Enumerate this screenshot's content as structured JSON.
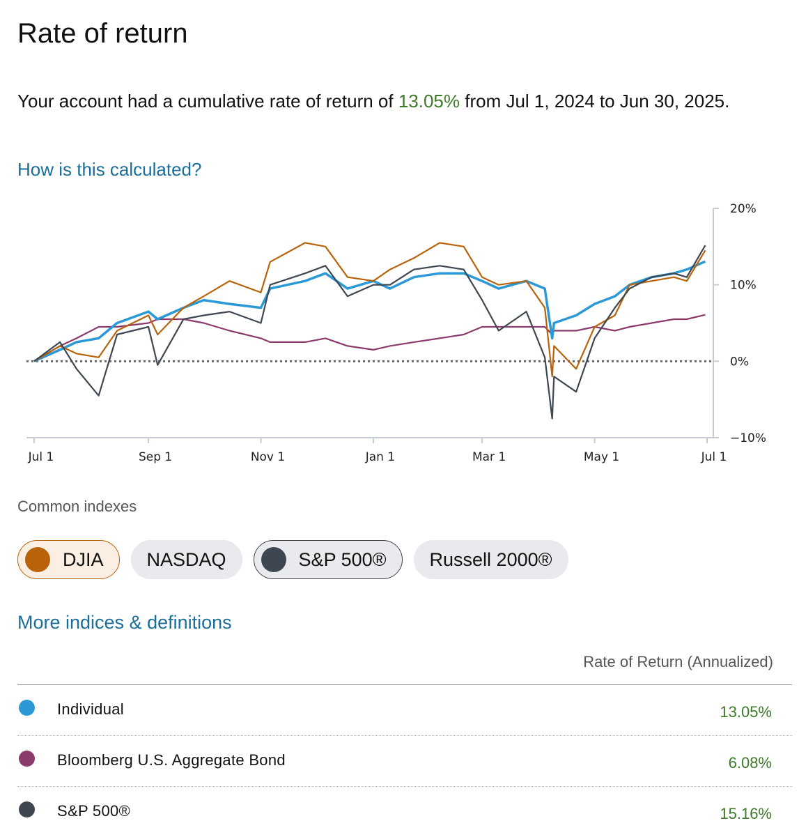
{
  "header": {
    "title": "Rate of return",
    "summary_prefix": "Your account had a cumulative rate of return of ",
    "summary_pct": "13.05%",
    "summary_suffix": " from Jul 1, 2024 to Jun 30, 2025.",
    "how_link": "How is this calculated?"
  },
  "colors": {
    "individual": "#2b99d6",
    "bond": "#8a3a6b",
    "djia": "#b8620a",
    "sp500": "#3d4651",
    "positive": "#3c7a2a",
    "link": "#1b6e9a"
  },
  "chart_data": {
    "type": "line",
    "x_ticks": [
      "Jul 1",
      "Sep 1",
      "Nov 1",
      "Jan 1",
      "Mar 1",
      "May 1",
      "Jul 1"
    ],
    "x_tick_dates": [
      "2024-07-01",
      "2024-09-01",
      "2024-11-01",
      "2025-01-01",
      "2025-03-01",
      "2025-05-01",
      "2025-07-01"
    ],
    "y_ticks": [
      "20%",
      "10%",
      "0%",
      "−10%"
    ],
    "y_tick_values": [
      20,
      10,
      0,
      -10
    ],
    "ylim": [
      -10,
      20
    ],
    "xlim": [
      "2024-07-01",
      "2025-07-01"
    ],
    "baseline": 0,
    "x": [
      "2024-07-01",
      "2024-07-15",
      "2024-07-24",
      "2024-08-05",
      "2024-08-15",
      "2024-09-01",
      "2024-09-06",
      "2024-09-20",
      "2024-10-01",
      "2024-10-15",
      "2024-11-01",
      "2024-11-06",
      "2024-11-25",
      "2024-12-06",
      "2024-12-18",
      "2025-01-01",
      "2025-01-10",
      "2025-01-23",
      "2025-02-06",
      "2025-02-19",
      "2025-03-01",
      "2025-03-10",
      "2025-03-25",
      "2025-04-04",
      "2025-04-08",
      "2025-04-09",
      "2025-04-21",
      "2025-05-01",
      "2025-05-12",
      "2025-05-20",
      "2025-06-01",
      "2025-06-13",
      "2025-06-20",
      "2025-06-30"
    ],
    "series": [
      {
        "name": "Individual",
        "key": "individual",
        "values": [
          0.0,
          1.5,
          2.5,
          3.0,
          5.0,
          6.5,
          5.5,
          7.0,
          8.0,
          7.5,
          7.0,
          9.5,
          10.5,
          11.5,
          9.5,
          10.5,
          9.5,
          11.0,
          11.5,
          11.5,
          10.5,
          9.5,
          10.5,
          9.5,
          3.0,
          5.0,
          6.0,
          7.5,
          8.5,
          10.0,
          11.0,
          11.5,
          12.0,
          13.05
        ]
      },
      {
        "name": "Bloomberg U.S. Aggregate Bond",
        "key": "bond",
        "values": [
          0.0,
          2.0,
          3.0,
          4.5,
          4.5,
          5.0,
          5.5,
          5.5,
          5.0,
          4.0,
          3.0,
          2.5,
          2.5,
          3.0,
          2.0,
          1.5,
          2.0,
          2.5,
          3.0,
          3.5,
          4.5,
          4.5,
          4.5,
          4.5,
          3.5,
          4.0,
          4.0,
          4.5,
          4.0,
          4.5,
          5.0,
          5.5,
          5.5,
          6.08
        ]
      },
      {
        "name": "DJIA",
        "key": "djia",
        "values": [
          0.0,
          2.0,
          1.0,
          0.5,
          4.0,
          6.0,
          3.5,
          7.0,
          8.5,
          10.5,
          9.0,
          13.0,
          15.5,
          15.0,
          11.0,
          10.5,
          12.0,
          13.5,
          15.5,
          15.0,
          11.0,
          10.0,
          10.5,
          7.0,
          -2.0,
          2.0,
          -1.0,
          4.5,
          6.0,
          10.0,
          10.5,
          11.0,
          10.5,
          14.5
        ]
      },
      {
        "name": "S&P 500®",
        "key": "sp500",
        "values": [
          0.0,
          2.5,
          -1.0,
          -4.5,
          3.5,
          4.5,
          -0.5,
          5.5,
          6.0,
          6.5,
          5.0,
          10.0,
          11.5,
          12.5,
          8.5,
          10.0,
          10.0,
          12.0,
          12.5,
          12.0,
          8.0,
          4.0,
          6.5,
          0.5,
          -7.5,
          -2.0,
          -4.0,
          3.0,
          7.0,
          9.5,
          11.0,
          11.5,
          11.0,
          15.16
        ]
      }
    ]
  },
  "indexes": {
    "label": "Common indexes",
    "chips": [
      {
        "label": "DJIA",
        "selected": true
      },
      {
        "label": "NASDAQ",
        "selected": false
      },
      {
        "label": "S&P 500®",
        "selected": true
      },
      {
        "label": "Russell 2000®",
        "selected": false
      }
    ],
    "more_link": "More indices & definitions"
  },
  "table": {
    "header": "Rate of Return (Annualized)",
    "rows": [
      {
        "name": "Individual",
        "value": "13.05%",
        "color": "#2b99d6"
      },
      {
        "name": "Bloomberg U.S. Aggregate Bond",
        "value": "6.08%",
        "color": "#8a3a6b"
      },
      {
        "name": "S&P 500®",
        "value": "15.16%",
        "color": "#3d4651"
      }
    ]
  }
}
